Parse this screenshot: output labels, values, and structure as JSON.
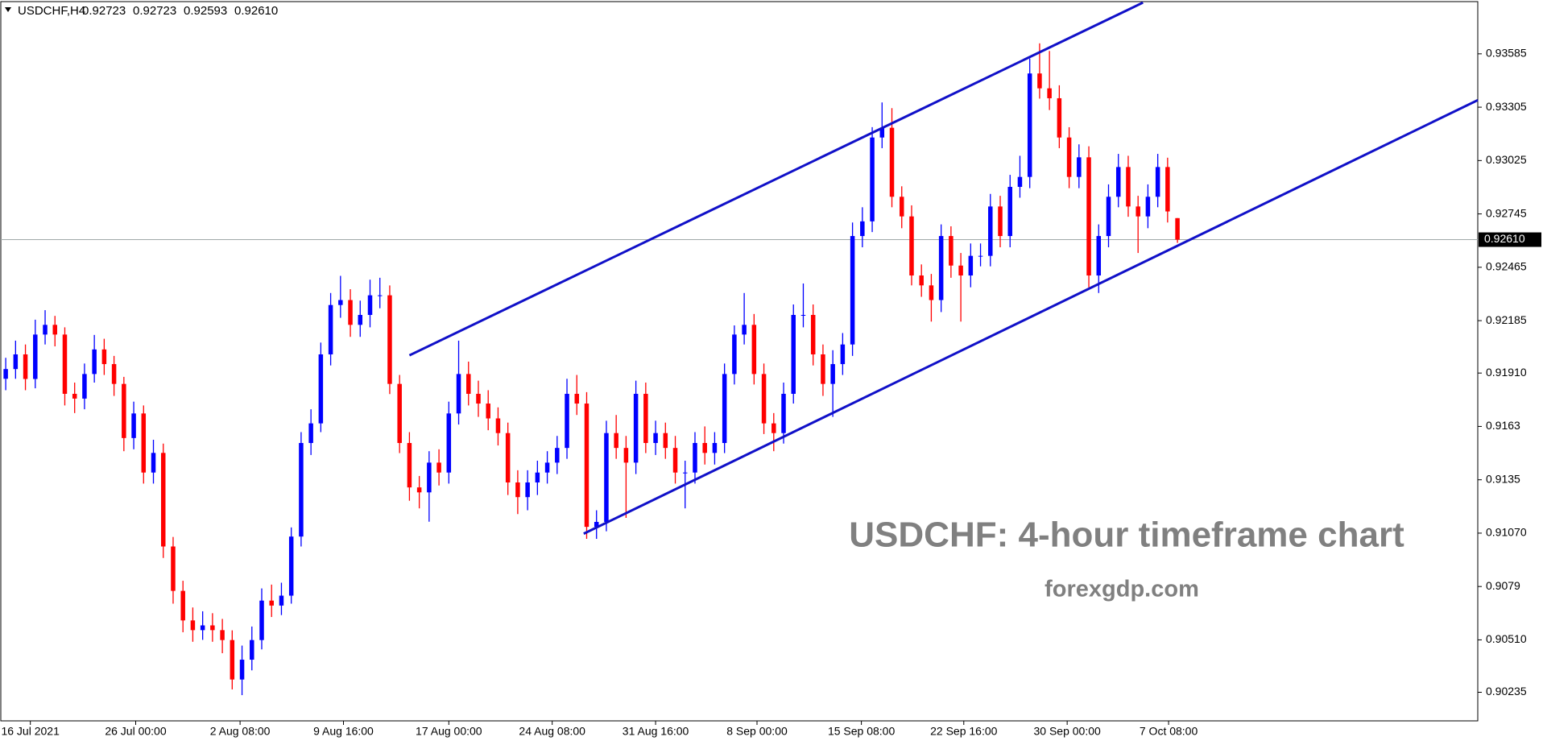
{
  "header": {
    "symbol": "USDCHF,H4",
    "values": [
      "0.92723",
      "0.92723",
      "0.92593",
      "0.92610"
    ]
  },
  "chart_data": {
    "type": "candlestick",
    "annotations": [
      "USDCHF: 4-hour timeframe chart",
      "forexgdp.com"
    ],
    "x": [
      0,
      1,
      2,
      3,
      4,
      5,
      6,
      7,
      8,
      9,
      10,
      11,
      12,
      13,
      14,
      15,
      16,
      17,
      18,
      19,
      20,
      21,
      22,
      23,
      24,
      25,
      26,
      27,
      28,
      29,
      30,
      31,
      32,
      33,
      34,
      35,
      36,
      37,
      38,
      39,
      40,
      41,
      42,
      43,
      44,
      45,
      46,
      47,
      48,
      49,
      50,
      51,
      52,
      53,
      54,
      55,
      56,
      57,
      58,
      59,
      60,
      61,
      62,
      63,
      64,
      65,
      66,
      67,
      68,
      69,
      70,
      71,
      72,
      73,
      74,
      75,
      76,
      77,
      78,
      79,
      80,
      81,
      82,
      83,
      84,
      85,
      86,
      87,
      88,
      89,
      90,
      91,
      92,
      93,
      94,
      95,
      96,
      97,
      98,
      99,
      100,
      101,
      102,
      103,
      104,
      105,
      106,
      107,
      108,
      109,
      110,
      111,
      112,
      113,
      114,
      115,
      116,
      117,
      118,
      119
    ],
    "open": [
      0.9188,
      0.91931,
      0.92008,
      0.91879,
      0.92112,
      0.92163,
      0.92112,
      0.91801,
      0.91776,
      0.91905,
      0.92034,
      0.91957,
      0.91853,
      0.91569,
      0.91698,
      0.91388,
      0.91491,
      0.91,
      0.90767,
      0.90612,
      0.90561,
      0.90586,
      0.90561,
      0.90509,
      0.90302,
      0.90406,
      0.90509,
      0.90716,
      0.9069,
      0.90742,
      0.91052,
      0.91543,
      0.91646,
      0.92008,
      0.92267,
      0.92293,
      0.92163,
      0.92215,
      0.92318,
      0.92318,
      0.91853,
      0.91543,
      0.9131,
      0.91284,
      0.9144,
      0.91388,
      0.91698,
      0.91905,
      0.91801,
      0.9175,
      0.91672,
      0.91595,
      0.91336,
      0.91259,
      0.91336,
      0.91388,
      0.9144,
      0.91517,
      0.91801,
      0.9175,
      0.91103,
      0.91129,
      0.91595,
      0.91517,
      0.9144,
      0.91801,
      0.91543,
      0.91595,
      0.91517,
      0.91388,
      0.91388,
      0.91543,
      0.91491,
      0.91543,
      0.91905,
      0.92112,
      0.92163,
      0.91905,
      0.91646,
      0.91595,
      0.91801,
      0.92215,
      0.92215,
      0.92008,
      0.91853,
      0.91957,
      0.9206,
      0.92629,
      0.92706,
      0.93146,
      0.93197,
      0.92835,
      0.92732,
      0.92422,
      0.9237,
      0.92293,
      0.92629,
      0.92474,
      0.92422,
      0.92525,
      0.92525,
      0.92784,
      0.92629,
      0.92887,
      0.92939,
      0.93482,
      0.93404,
      0.93352,
      0.93146,
      0.92939,
      0.93042,
      0.92422,
      0.92629,
      0.92835,
      0.92991,
      0.92784,
      0.92732,
      0.92835,
      0.92991,
      0.92723
    ],
    "high": [
      0.9199,
      0.9208,
      0.9206,
      0.9219,
      0.9224,
      0.9221,
      0.9215,
      0.9186,
      0.9196,
      0.9211,
      0.9209,
      0.92,
      0.9189,
      0.9176,
      0.9174,
      0.9156,
      0.9154,
      0.9105,
      0.9082,
      0.9068,
      0.9066,
      0.9065,
      0.9062,
      0.9056,
      0.9048,
      0.9058,
      0.9078,
      0.908,
      0.9081,
      0.911,
      0.916,
      0.9172,
      0.9207,
      0.9233,
      0.9242,
      0.9235,
      0.9229,
      0.924,
      0.9241,
      0.9237,
      0.919,
      0.916,
      0.9137,
      0.915,
      0.9151,
      0.9176,
      0.9208,
      0.9197,
      0.9187,
      0.9182,
      0.9173,
      0.9165,
      0.914,
      0.914,
      0.9145,
      0.915,
      0.9158,
      0.9188,
      0.919,
      0.9181,
      0.9119,
      0.9166,
      0.9169,
      0.9158,
      0.9187,
      0.9186,
      0.9166,
      0.9165,
      0.9158,
      0.9145,
      0.916,
      0.9163,
      0.916,
      0.9196,
      0.9216,
      0.9233,
      0.9222,
      0.9196,
      0.917,
      0.9186,
      0.9227,
      0.9238,
      0.9227,
      0.9206,
      0.9203,
      0.9212,
      0.927,
      0.9278,
      0.932,
      0.9333,
      0.933,
      0.9289,
      0.9279,
      0.9248,
      0.9243,
      0.9269,
      0.9268,
      0.9254,
      0.9259,
      0.9259,
      0.9285,
      0.9284,
      0.9295,
      0.9305,
      0.9356,
      0.9364,
      0.936,
      0.9342,
      0.932,
      0.9311,
      0.931,
      0.9269,
      0.929,
      0.9306,
      0.9305,
      0.9284,
      0.929,
      0.9306,
      0.9304,
      0.92723
    ],
    "low": [
      0.9182,
      0.9188,
      0.9182,
      0.9183,
      0.9206,
      0.9205,
      0.9174,
      0.917,
      0.9172,
      0.9186,
      0.919,
      0.9179,
      0.915,
      0.9151,
      0.9133,
      0.9133,
      0.9094,
      0.907,
      0.9055,
      0.905,
      0.9051,
      0.905,
      0.9044,
      0.9025,
      0.9022,
      0.9035,
      0.9046,
      0.9063,
      0.9064,
      0.907,
      0.91,
      0.9148,
      0.916,
      0.9195,
      0.922,
      0.921,
      0.921,
      0.9215,
      0.9225,
      0.918,
      0.9149,
      0.9124,
      0.912,
      0.9113,
      0.9132,
      0.9133,
      0.9164,
      0.9174,
      0.9168,
      0.9161,
      0.9153,
      0.9127,
      0.9117,
      0.9119,
      0.9127,
      0.9133,
      0.9138,
      0.9146,
      0.9169,
      0.9104,
      0.9104,
      0.9108,
      0.9146,
      0.9115,
      0.9138,
      0.9149,
      0.9148,
      0.9146,
      0.9133,
      0.912,
      0.9133,
      0.9143,
      0.9143,
      0.9149,
      0.9185,
      0.9206,
      0.9185,
      0.9159,
      0.915,
      0.9154,
      0.9175,
      0.9215,
      0.9195,
      0.9179,
      0.9168,
      0.919,
      0.92,
      0.9257,
      0.9265,
      0.9309,
      0.9278,
      0.9267,
      0.9237,
      0.9231,
      0.9218,
      0.9223,
      0.9241,
      0.9218,
      0.9236,
      0.9247,
      0.9247,
      0.9257,
      0.9257,
      0.9283,
      0.9288,
      0.9335,
      0.9329,
      0.9309,
      0.9288,
      0.9288,
      0.9236,
      0.9233,
      0.9257,
      0.9278,
      0.9273,
      0.9254,
      0.9267,
      0.9278,
      0.927,
      0.92593
    ],
    "close": [
      0.91931,
      0.92008,
      0.91879,
      0.92112,
      0.92163,
      0.92112,
      0.91801,
      0.91776,
      0.91905,
      0.92034,
      0.91957,
      0.91853,
      0.91569,
      0.91698,
      0.91388,
      0.91491,
      0.91,
      0.90767,
      0.90612,
      0.90561,
      0.90586,
      0.90561,
      0.90509,
      0.90302,
      0.90406,
      0.90509,
      0.90716,
      0.9069,
      0.90742,
      0.91052,
      0.91543,
      0.91646,
      0.92008,
      0.92267,
      0.92293,
      0.92163,
      0.92215,
      0.92318,
      0.92318,
      0.91853,
      0.91543,
      0.9131,
      0.91284,
      0.9144,
      0.91388,
      0.91698,
      0.91905,
      0.91801,
      0.9175,
      0.91672,
      0.91595,
      0.91336,
      0.91259,
      0.91336,
      0.91388,
      0.9144,
      0.91517,
      0.91801,
      0.9175,
      0.91103,
      0.91129,
      0.91595,
      0.91517,
      0.9144,
      0.91801,
      0.91543,
      0.91595,
      0.91517,
      0.91388,
      0.91388,
      0.91543,
      0.91491,
      0.91543,
      0.91905,
      0.92112,
      0.92163,
      0.91905,
      0.91646,
      0.91595,
      0.91801,
      0.92215,
      0.92215,
      0.92008,
      0.91853,
      0.91957,
      0.9206,
      0.92629,
      0.92706,
      0.93146,
      0.93197,
      0.92835,
      0.92732,
      0.92422,
      0.9237,
      0.92293,
      0.92629,
      0.92474,
      0.92422,
      0.92525,
      0.92525,
      0.92784,
      0.92629,
      0.92887,
      0.92939,
      0.93482,
      0.93404,
      0.93352,
      0.93146,
      0.92939,
      0.93042,
      0.92422,
      0.92629,
      0.92835,
      0.92991,
      0.92784,
      0.92732,
      0.92835,
      0.92991,
      0.92758,
      0.9261
    ],
    "up_color": "#0000ff",
    "down_color": "#ff0000",
    "xlim": [
      -0.5,
      149.5
    ],
    "ylim": [
      0.90085,
      0.93859
    ],
    "xticks": [
      {
        "value": 2.5,
        "label": "16 Jul 2021"
      },
      {
        "value": 13.2,
        "label": "26 Jul 00:00"
      },
      {
        "value": 23.8,
        "label": "2 Aug 08:00"
      },
      {
        "value": 34.3,
        "label": "9 Aug 16:00"
      },
      {
        "value": 45,
        "label": "17 Aug 00:00"
      },
      {
        "value": 55.5,
        "label": "24 Aug 08:00"
      },
      {
        "value": 66,
        "label": "31 Aug 16:00"
      },
      {
        "value": 76.3,
        "label": "8 Sep 00:00"
      },
      {
        "value": 86.9,
        "label": "15 Sep 08:00"
      },
      {
        "value": 97.3,
        "label": "22 Sep 16:00"
      },
      {
        "value": 107.8,
        "label": "30 Sep 00:00"
      },
      {
        "value": 118.1,
        "label": "7 Oct 08:00"
      }
    ],
    "yticks": [
      0.93585,
      0.93305,
      0.93025,
      0.92745,
      0.92465,
      0.92185,
      {
        "value": 0.9191,
        "label": "0.91910"
      },
      0.9163,
      0.9135,
      {
        "value": 0.9107,
        "label": "0.91070"
      },
      0.9079,
      {
        "value": 0.9051,
        "label": "0.90510"
      },
      0.90235
    ],
    "last_price": {
      "value": 0.9261,
      "label": "0.92610"
    },
    "trendlines": [
      {
        "color": "#1010c8",
        "x": [
          41,
          115.5
        ],
        "y": [
          0.92003,
          0.93854
        ]
      },
      {
        "color": "#1010c8",
        "x": [
          58.7,
          149.5
        ],
        "y": [
          0.91067,
          0.93342
        ]
      }
    ]
  }
}
